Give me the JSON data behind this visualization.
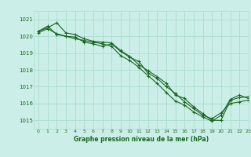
{
  "title": "Graphe pression niveau de la mer (hPa)",
  "xlabel": "Graphe pression niveau de la mer (hPa)",
  "bg_color": "#cceee8",
  "grid_color": "#aaddcc",
  "line_color": "#1a6620",
  "marker_color": "#1a6620",
  "ylim": [
    1014.5,
    1021.5
  ],
  "xlim": [
    -0.5,
    23
  ],
  "yticks": [
    1015,
    1016,
    1017,
    1018,
    1019,
    1020,
    1021
  ],
  "xticks": [
    0,
    1,
    2,
    3,
    4,
    5,
    6,
    7,
    8,
    9,
    10,
    11,
    12,
    13,
    14,
    15,
    16,
    17,
    18,
    19,
    20,
    21,
    22,
    23
  ],
  "lines": [
    [
      1020.3,
      1020.5,
      1020.8,
      1020.2,
      1020.1,
      1019.85,
      1019.7,
      1019.65,
      1019.6,
      1019.15,
      1018.8,
      1018.3,
      1017.95,
      1017.6,
      1017.2,
      1016.5,
      1016.3,
      1015.8,
      1015.4,
      1015.0,
      1015.0,
      1016.2,
      1016.35,
      1016.4
    ],
    [
      1020.3,
      1020.6,
      1020.1,
      1020.0,
      1019.85,
      1019.75,
      1019.65,
      1019.55,
      1019.4,
      1018.85,
      1018.55,
      1018.15,
      1017.65,
      1017.2,
      1016.65,
      1016.15,
      1015.9,
      1015.5,
      1015.2,
      1014.95,
      1015.3,
      1016.25,
      1016.5,
      1016.3
    ],
    [
      1020.2,
      1020.45,
      1020.15,
      1020.0,
      1019.95,
      1019.65,
      1019.55,
      1019.4,
      1019.55,
      1019.1,
      1018.75,
      1018.5,
      1017.8,
      1017.5,
      1017.0,
      1016.6,
      1016.1,
      1015.7,
      1015.3,
      1015.1,
      1015.45,
      1016.0,
      1016.1,
      1016.2
    ]
  ]
}
